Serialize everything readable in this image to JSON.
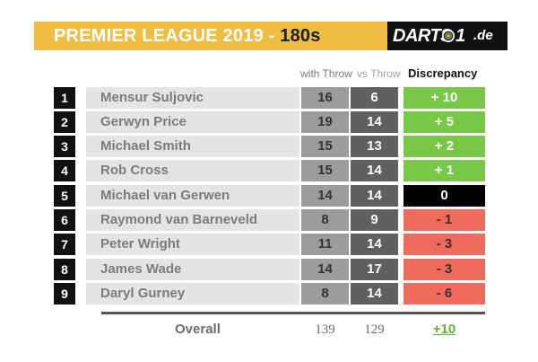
{
  "header": {
    "title": "PREMIER LEAGUE 2019 - ",
    "subtitle": "180s",
    "logo_text": "DARTS",
    "logo_num": "1",
    "logo_tld": ".de",
    "banner_color": "#f0bd43"
  },
  "columns": {
    "with_throw": "with Throw",
    "vs_throw": "vs Throw",
    "discrepancy": "Discrepancy"
  },
  "rows": [
    {
      "rank": "1",
      "name": "Mensur Suljovic",
      "with": "16",
      "vs": "6",
      "disc": "+ 10",
      "status": "pos"
    },
    {
      "rank": "2",
      "name": "Gerwyn Price",
      "with": "19",
      "vs": "14",
      "disc": "+ 5",
      "status": "pos"
    },
    {
      "rank": "3",
      "name": "Michael Smith",
      "with": "15",
      "vs": "13",
      "disc": "+ 2",
      "status": "pos"
    },
    {
      "rank": "4",
      "name": "Rob Cross",
      "with": "15",
      "vs": "14",
      "disc": "+ 1",
      "status": "pos"
    },
    {
      "rank": "5",
      "name": "Michael van Gerwen",
      "with": "14",
      "vs": "14",
      "disc": "0",
      "status": "zero"
    },
    {
      "rank": "6",
      "name": "Raymond van Barneveld",
      "with": "8",
      "vs": "9",
      "disc": "- 1",
      "status": "neg"
    },
    {
      "rank": "7",
      "name": "Peter Wright",
      "with": "11",
      "vs": "14",
      "disc": "- 3",
      "status": "neg"
    },
    {
      "rank": "8",
      "name": "James Wade",
      "with": "14",
      "vs": "17",
      "disc": "- 3",
      "status": "neg"
    },
    {
      "rank": "9",
      "name": "Daryl Gurney",
      "with": "8",
      "vs": "14",
      "disc": "- 6",
      "status": "neg"
    }
  ],
  "overall": {
    "label": "Overall",
    "with": "139",
    "vs": "129",
    "disc": "+10"
  },
  "colors": {
    "positive": "#78c746",
    "zero": "#000000",
    "negative": "#ee6a5b"
  }
}
